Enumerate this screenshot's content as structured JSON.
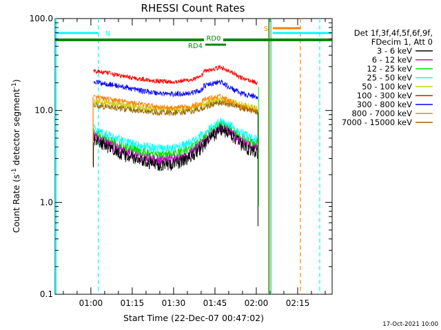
{
  "chart_data": {
    "type": "line",
    "title": "RHESSI Count Rates",
    "ylabel_main": "Count Rate (s",
    "ylabel_sup1": "-1",
    "ylabel_mid": " detector segment",
    "ylabel_sup2": "-1",
    "ylabel_end": ")",
    "xlabel": "Start Time (22-Dec-07 00:47:02)",
    "y_scale": "log",
    "ylim": [
      0.1,
      100
    ],
    "xlim_minutes": [
      47.03,
      147.5
    ],
    "y_ticks": [
      {
        "value": 100,
        "label": "100.0"
      },
      {
        "value": 10,
        "label": "10.0"
      },
      {
        "value": 1,
        "label": "1.0"
      },
      {
        "value": 0.1,
        "label": "0.1"
      }
    ],
    "x_ticks": [
      {
        "value": 60,
        "label": "01:00"
      },
      {
        "value": 75,
        "label": "01:15"
      },
      {
        "value": 90,
        "label": "01:30"
      },
      {
        "value": 105,
        "label": "01:45"
      },
      {
        "value": 120,
        "label": "02:00"
      },
      {
        "value": 135,
        "label": "02:15"
      }
    ],
    "legend_header": [
      "Det 1f,3f,4f,5f,6f,9f,",
      "FDecim 1, Att 0"
    ],
    "legend_placement": "right",
    "series": [
      {
        "name": "3 - 6 keV",
        "color": "#000000",
        "x": [
          61,
          66,
          72,
          78,
          84,
          90,
          96,
          100,
          104,
          107,
          110,
          114,
          118,
          120.5
        ],
        "y": [
          5.0,
          4.0,
          3.3,
          2.8,
          2.6,
          2.6,
          3.1,
          3.9,
          5.2,
          6.2,
          5.7,
          4.4,
          3.7,
          3.5
        ]
      },
      {
        "name": "6 - 12 keV",
        "color": "#cc00cc",
        "x": [
          61,
          66,
          72,
          78,
          84,
          90,
          96,
          100,
          104,
          107,
          110,
          114,
          118,
          120.5
        ],
        "y": [
          5.3,
          4.3,
          3.6,
          3.1,
          2.9,
          2.9,
          3.4,
          4.2,
          5.5,
          6.5,
          6.0,
          4.7,
          4.0,
          3.8
        ]
      },
      {
        "name": "12 - 25 keV",
        "color": "#00dd00",
        "x": [
          61,
          66,
          72,
          78,
          84,
          90,
          96,
          100,
          104,
          107,
          110,
          114,
          118,
          120.5
        ],
        "y": [
          5.7,
          4.7,
          4.0,
          3.5,
          3.3,
          3.3,
          3.8,
          4.6,
          5.9,
          6.9,
          6.4,
          5.1,
          4.4,
          4.2
        ]
      },
      {
        "name": "25 - 50 keV",
        "color": "#00ffff",
        "x": [
          61,
          66,
          72,
          78,
          84,
          90,
          96,
          100,
          104,
          107,
          110,
          114,
          118,
          120.5
        ],
        "y": [
          6.4,
          5.4,
          4.6,
          4.1,
          3.9,
          3.9,
          4.4,
          5.3,
          6.6,
          7.6,
          7.1,
          5.8,
          5.1,
          4.8
        ]
      },
      {
        "name": "50 - 100 keV",
        "color": "#cccc00",
        "x": [
          61,
          66,
          72,
          78,
          84,
          90,
          96,
          100,
          102,
          104,
          107,
          110,
          114,
          118,
          120.5
        ],
        "y": [
          12.5,
          12.0,
          11.3,
          10.8,
          10.4,
          10.3,
          10.6,
          11.3,
          12.0,
          12.6,
          13.0,
          12.6,
          11.6,
          10.9,
          10.5
        ]
      },
      {
        "name": "100 - 300 keV",
        "color": "#ff0000",
        "x": [
          61,
          66,
          72,
          78,
          84,
          90,
          96,
          100,
          101,
          104,
          107,
          110,
          114,
          118,
          120.5
        ],
        "y": [
          27.0,
          25.5,
          23.5,
          22.0,
          21.0,
          20.5,
          21.5,
          23.0,
          26.5,
          28.0,
          29.5,
          27.0,
          23.0,
          21.0,
          20.0
        ]
      },
      {
        "name": "300 - 800 keV",
        "color": "#0000ff",
        "x": [
          61,
          66,
          72,
          78,
          84,
          90,
          96,
          100,
          101,
          104,
          107,
          110,
          114,
          118,
          120.5
        ],
        "y": [
          20.5,
          19.5,
          18.0,
          16.5,
          15.5,
          15.0,
          15.5,
          16.5,
          18.5,
          19.5,
          20.5,
          18.0,
          15.5,
          14.5,
          14.0
        ]
      },
      {
        "name": "800 - 7000 keV",
        "color": "#ff8000",
        "x": [
          61,
          66,
          72,
          78,
          84,
          90,
          96,
          100,
          101,
          104,
          107,
          110,
          114,
          118,
          120.5
        ],
        "y": [
          14.0,
          13.3,
          12.5,
          11.7,
          11.0,
          10.6,
          11.0,
          12.0,
          13.0,
          13.8,
          14.2,
          13.0,
          11.3,
          10.3,
          9.6
        ]
      },
      {
        "name": "7000 - 15000 keV",
        "color": "#996600",
        "x": [
          61,
          66,
          72,
          78,
          84,
          90,
          96,
          100,
          104,
          107,
          110,
          114,
          118,
          120.5
        ],
        "y": [
          11.5,
          11.0,
          10.4,
          9.9,
          9.5,
          9.4,
          9.7,
          10.4,
          11.6,
          12.0,
          11.7,
          10.7,
          10.0,
          9.6
        ]
      }
    ],
    "annotations": [
      {
        "label": "N",
        "kind": "night",
        "x_start": 47.03,
        "x_end": 62.7,
        "color": "#00ffff"
      },
      {
        "label": "RD0",
        "kind": "bar",
        "x_start": 47.03,
        "x_end": 147.5,
        "color": "#008800"
      },
      {
        "label": "RD4",
        "kind": "bar",
        "x_start": 101.5,
        "x_end": 109.0,
        "color": "#008800"
      },
      {
        "label": "S",
        "kind": "saa",
        "x_start": 126.0,
        "x_end": 136.0,
        "color": "#ff8000"
      }
    ],
    "vertical_lines": [
      {
        "x": 62.7,
        "color": "#00ffff",
        "style": "dashed"
      },
      {
        "x": 125.5,
        "color": "#00ffff",
        "style": "solid"
      },
      {
        "x": 136.0,
        "color": "#ff8000",
        "style": "dashed"
      },
      {
        "x": 143.0,
        "color": "#00ffff",
        "style": "dashed"
      }
    ]
  },
  "footer_date": "17-Oct-2021 10:00"
}
